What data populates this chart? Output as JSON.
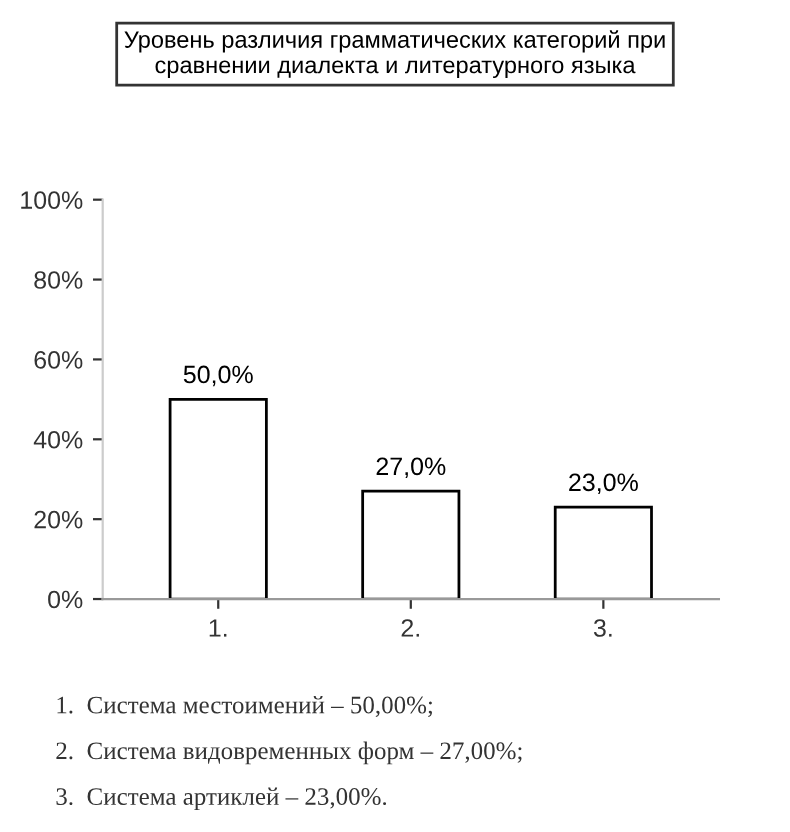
{
  "chart_data": {
    "type": "bar",
    "title": "Уровень различия грамматических категорий при\nсравнении диалекта и литературного языка",
    "categories": [
      "1.",
      "2.",
      "3."
    ],
    "values": [
      50,
      27,
      23
    ],
    "color": "#ffffff",
    "value_labels": [
      "50,0%",
      "27,0%",
      "23,0%"
    ],
    "ylim": [
      0,
      100
    ],
    "yticks": [
      {
        "value": 0,
        "label": "0%"
      },
      {
        "value": 20,
        "label": "20%"
      },
      {
        "value": 40,
        "label": "40%"
      },
      {
        "value": 60,
        "label": "60%"
      },
      {
        "value": 80,
        "label": "80%"
      },
      {
        "value": 100,
        "label": "100%"
      }
    ],
    "grid": false,
    "annotations": [
      "1.  Система местоимений – 50,00%;",
      "2.  Система видовременных форм – 27,00%;",
      "3.  Система артиклей – 23,00%."
    ]
  }
}
